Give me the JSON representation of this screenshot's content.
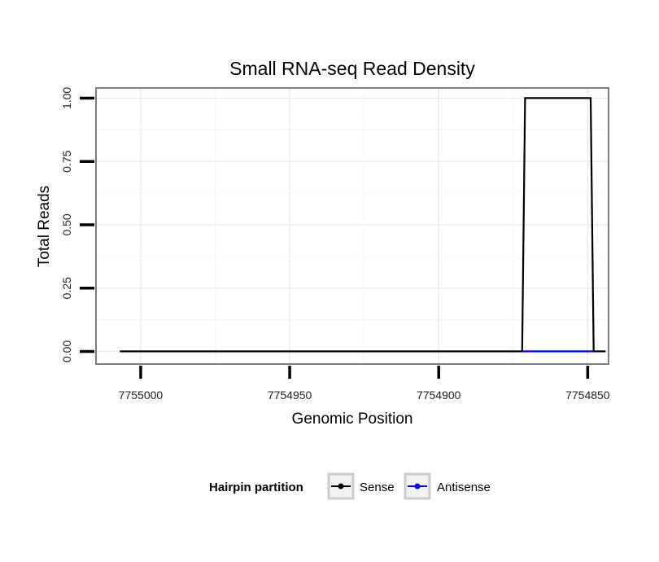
{
  "chart_data": {
    "type": "line",
    "title": "Small RNA-seq Read Density",
    "xlabel": "Genomic Position",
    "ylabel": "Total Reads",
    "x_reversed": true,
    "xlim": [
      7755015,
      7754843
    ],
    "ylim": [
      -0.05,
      1.04
    ],
    "x_ticks": [
      7755000,
      7754950,
      7754900,
      7754850
    ],
    "x_tick_labels": [
      "7755000",
      "7754950",
      "7754900",
      "7754850"
    ],
    "y_ticks": [
      0,
      0.25,
      0.5,
      0.75,
      1.0
    ],
    "y_tick_labels": [
      "0.00",
      "0.25",
      "0.50",
      "0.75",
      "1.00"
    ],
    "grid": true,
    "legend": {
      "title": "Hairpin partition",
      "placement": "bottom",
      "entries": [
        {
          "name": "Sense",
          "color": "#000000"
        },
        {
          "name": "Antisense",
          "color": "#0000ff"
        }
      ]
    },
    "series": [
      {
        "name": "Sense",
        "color": "#000000",
        "x": [
          7755007,
          7754872,
          7754871,
          7754849,
          7754848,
          7754844
        ],
        "y": [
          0,
          0,
          1,
          1,
          0,
          0
        ]
      },
      {
        "name": "Antisense",
        "color": "#0000ff",
        "x": [
          7754872,
          7754848
        ],
        "y": [
          0,
          0
        ]
      }
    ]
  }
}
